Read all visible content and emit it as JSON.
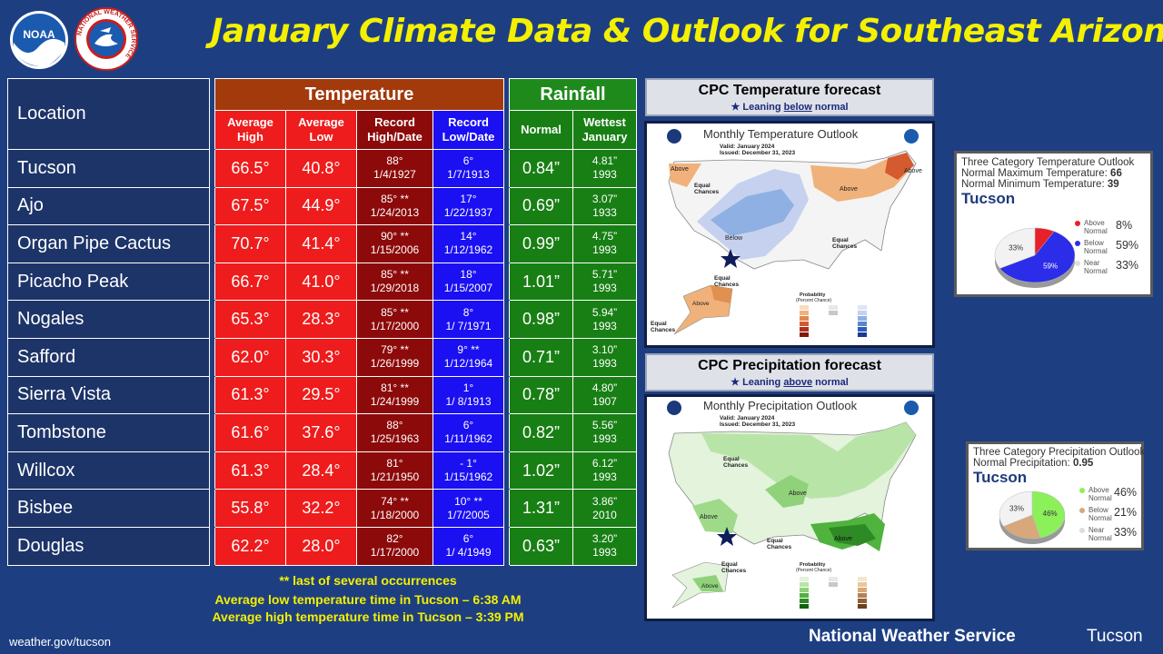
{
  "title": "January Climate Data & Outlook for Southeast Arizona",
  "logos": {
    "noaa_text": "NOAA",
    "nws_ring_text": "NATIONAL WEATHER SERVICE"
  },
  "table": {
    "location_header": "Location",
    "temperature_header": "Temperature",
    "rainfall_header": "Rainfall",
    "sub_headers": {
      "avg_high": [
        "Average",
        "High"
      ],
      "avg_low": [
        "Average",
        "Low"
      ],
      "rec_high": [
        "Record",
        "High/Date"
      ],
      "rec_low": [
        "Record",
        "Low/Date"
      ],
      "normal": [
        "Normal"
      ],
      "wettest": [
        "Wettest",
        "January"
      ]
    },
    "rows": [
      {
        "loc": "Tucson",
        "high": "66.5°",
        "low": "40.8°",
        "rh": "88°",
        "rhd": "1/4/1927",
        "rl": "6°",
        "rld": "1/7/1913",
        "norm": "0.84”",
        "wet": "4.81”",
        "wety": "1993"
      },
      {
        "loc": "Ajo",
        "high": "67.5°",
        "low": "44.9°",
        "rh": "85° **",
        "rhd": "1/24/2013",
        "rl": "17°",
        "rld": "1/22/1937",
        "norm": "0.69”",
        "wet": "3.07”",
        "wety": "1933"
      },
      {
        "loc": "Organ Pipe Cactus",
        "high": "70.7°",
        "low": "41.4°",
        "rh": "90° **",
        "rhd": "1/15/2006",
        "rl": "14°",
        "rld": "1/12/1962",
        "norm": "0.99”",
        "wet": "4.75”",
        "wety": "1993"
      },
      {
        "loc": "Picacho Peak",
        "high": "66.7°",
        "low": "41.0°",
        "rh": "85° **",
        "rhd": "1/29/2018",
        "rl": "18°",
        "rld": "1/15/2007",
        "norm": "1.01”",
        "wet": "5.71”",
        "wety": "1993"
      },
      {
        "loc": "Nogales",
        "high": "65.3°",
        "low": "28.3°",
        "rh": "85° **",
        "rhd": "1/17/2000",
        "rl": "8°",
        "rld": "1/ 7/1971",
        "norm": "0.98”",
        "wet": "5.94”",
        "wety": "1993"
      },
      {
        "loc": "Safford",
        "high": "62.0°",
        "low": "30.3°",
        "rh": "79° **",
        "rhd": "1/26/1999",
        "rl": "9° **",
        "rld": "1/12/1964",
        "norm": "0.71”",
        "wet": "3.10”",
        "wety": "1993"
      },
      {
        "loc": "Sierra Vista",
        "high": "61.3°",
        "low": "29.5°",
        "rh": "81° **",
        "rhd": "1/24/1999",
        "rl": "1°",
        "rld": "1/ 8/1913",
        "norm": "0.78”",
        "wet": "4.80”",
        "wety": "1907"
      },
      {
        "loc": "Tombstone",
        "high": "61.6°",
        "low": "37.6°",
        "rh": "88°",
        "rhd": "1/25/1963",
        "rl": "6°",
        "rld": "1/11/1962",
        "norm": "0.82”",
        "wet": "5.56”",
        "wety": "1993"
      },
      {
        "loc": "Willcox",
        "high": "61.3°",
        "low": "28.4°",
        "rh": "81°",
        "rhd": "1/21/1950",
        "rl": "- 1°",
        "rld": "1/15/1962",
        "norm": "1.02”",
        "wet": "6.12”",
        "wety": "1993"
      },
      {
        "loc": "Bisbee",
        "high": "55.8°",
        "low": "32.2°",
        "rh": "74° **",
        "rhd": "1/18/2000",
        "rl": "10° **",
        "rld": "1/7/2005",
        "norm": "1.31”",
        "wet": "3.86”",
        "wety": "2010"
      },
      {
        "loc": "Douglas",
        "high": "62.2°",
        "low": "28.0°",
        "rh": "82°",
        "rhd": "1/17/2000",
        "rl": "6°",
        "rld": "1/ 4/1949",
        "norm": "0.63”",
        "wet": "3.20”",
        "wety": "1993"
      }
    ]
  },
  "footnotes": {
    "line1": "** last of several occurrences",
    "line2": "Average low temperature time in Tucson – 6:38 AM",
    "line3": "Average high temperature time in Tucson – 3:39 PM"
  },
  "footer": {
    "url": "weather.gov/tucson",
    "org": "National Weather Service",
    "office": "Tucson"
  },
  "temp_forecast": {
    "title": "CPC Temperature forecast",
    "lean_prefix": "Leaning ",
    "lean_word": "below",
    "lean_suffix": " normal",
    "map": {
      "title": "Monthly Temperature Outlook",
      "valid": "Valid:  January 2024",
      "issued": "Issued:  December 31, 2023",
      "labels": {
        "above_nw": "Above",
        "ec_w": [
          "Equal",
          "Chances"
        ],
        "below": "Below",
        "above_ne": "Above",
        "above_ne2": "Above",
        "ec_c": [
          "Equal",
          "Chances"
        ],
        "above_ak": "Above",
        "ec_ak": [
          "Equal",
          "Chances"
        ],
        "ec_sw": [
          "Equal",
          "Chances"
        ],
        "prob": [
          "Probability",
          "(Percent Chance)"
        ]
      }
    },
    "outlook": {
      "title": "Three Category Temperature Outlook",
      "normal_max_label": "Normal Maximum Temperature:",
      "normal_max": "66",
      "normal_min_label": "Normal Minimum Temperature:",
      "normal_min": "39",
      "city": "Tucson",
      "above": 8,
      "below": 59,
      "near": 33,
      "legend": [
        [
          "Above",
          "Normal"
        ],
        [
          "Below",
          "Normal"
        ],
        [
          "Near",
          "Normal"
        ]
      ],
      "pct_labels": [
        "8%",
        "59%",
        "33%"
      ],
      "slice_labels": {
        "near": "33%",
        "below": "59%"
      },
      "colors": {
        "above": "#e8202a",
        "below": "#2b2de8",
        "near": "#f2f2f2"
      }
    }
  },
  "precip_forecast": {
    "title": "CPC Precipitation forecast",
    "lean_prefix": "Leaning ",
    "lean_word": "above",
    "lean_suffix": " normal",
    "map": {
      "title": "Monthly Precipitation Outlook",
      "valid": "Valid:  January 2024",
      "issued": "Issued:  December 31, 2023",
      "labels": {
        "ec_n": [
          "Equal",
          "Chances"
        ],
        "above_c": "Above",
        "above_sw": "Above",
        "ec_s": [
          "Equal",
          "Chances"
        ],
        "above_se": "Above",
        "ec_ak": [
          "Equal",
          "Chances"
        ],
        "above_ak": "Above",
        "prob": [
          "Probability",
          "(Percent Chance)"
        ]
      }
    },
    "outlook": {
      "title": "Three Category Precipitation Outlook",
      "normal_label": "Normal Precipitation:",
      "normal": "0.95",
      "city": "Tucson",
      "above": 46,
      "below": 21,
      "near": 33,
      "legend": [
        [
          "Above",
          "Normal"
        ],
        [
          "Below",
          "Normal"
        ],
        [
          "Near",
          "Normal"
        ]
      ],
      "pct_labels": [
        "46%",
        "21%",
        "33%"
      ],
      "slice_labels": {
        "near": "33%",
        "above": "46%"
      },
      "colors": {
        "above": "#8cf05a",
        "below": "#d8a87a",
        "near": "#f2f2f2"
      }
    }
  }
}
